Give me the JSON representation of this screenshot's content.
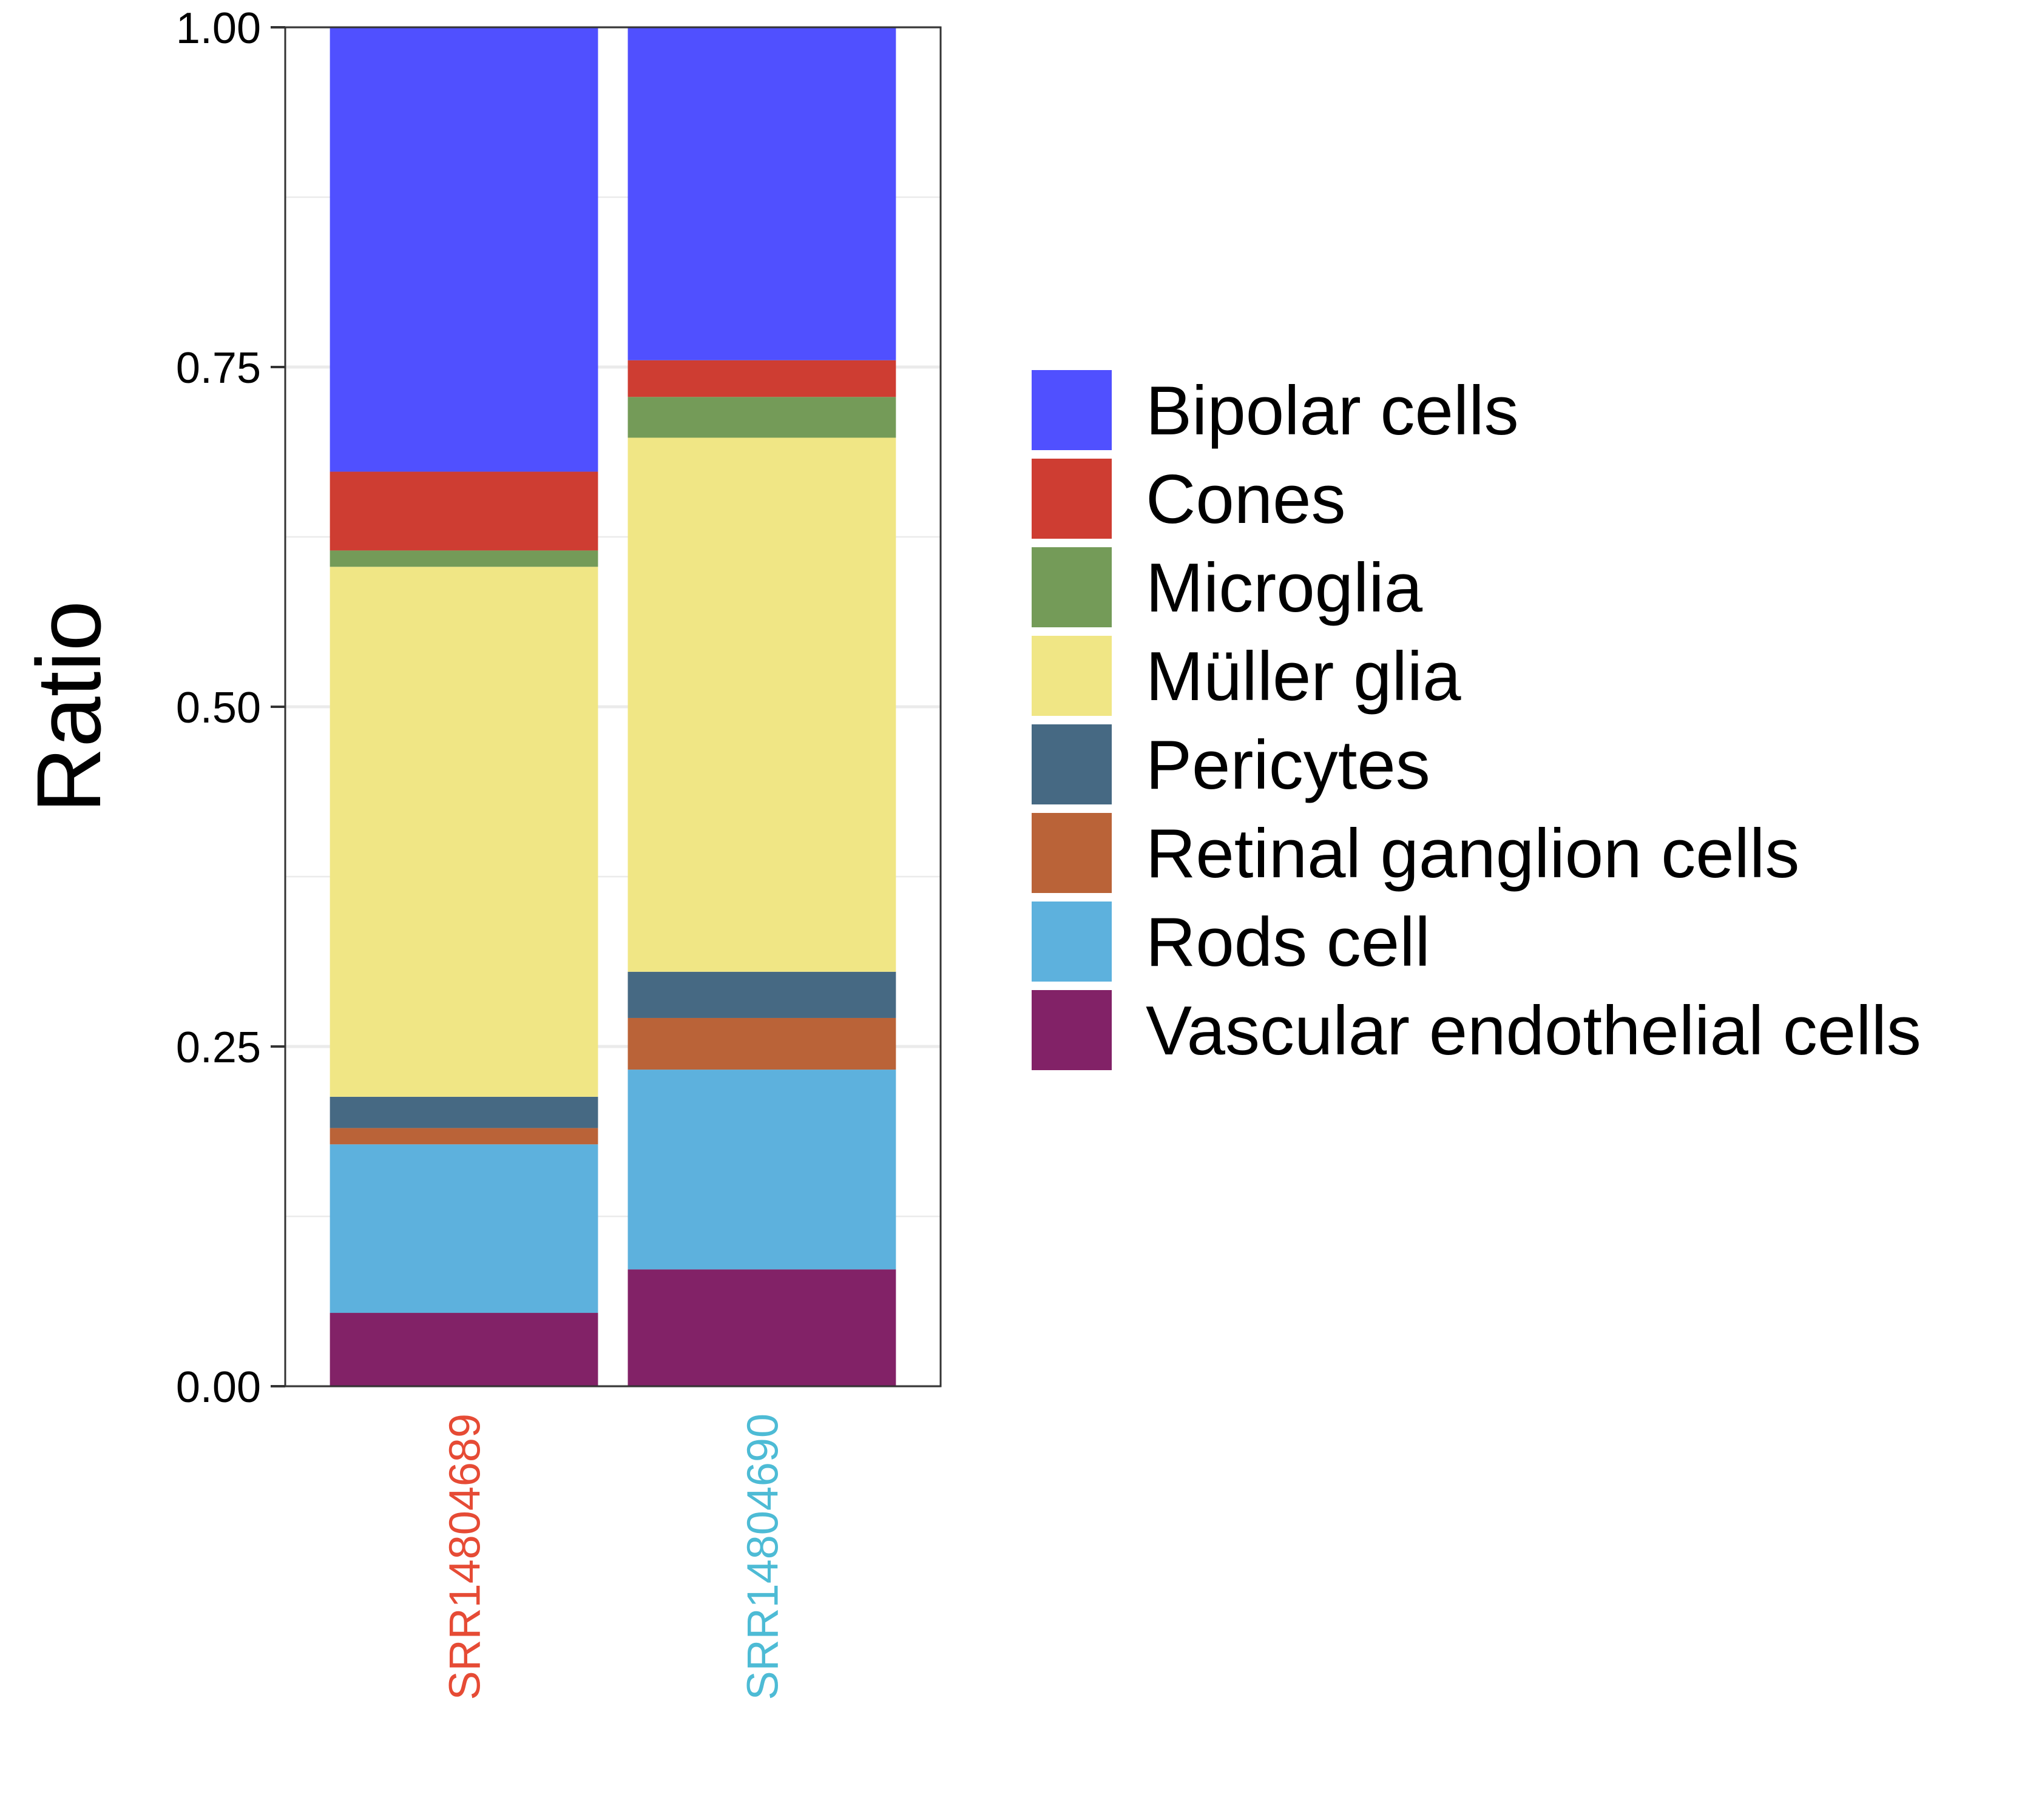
{
  "chart_data": {
    "type": "bar",
    "stacked": true,
    "title": "",
    "xlabel": "",
    "ylabel": "Ratio",
    "ylim": [
      0,
      1
    ],
    "yticks": [
      "0.00",
      "0.25",
      "0.50",
      "0.75",
      "1.00"
    ],
    "grid": true,
    "legend_position": "right",
    "categories": [
      "SRR14804689",
      "SRR14804690"
    ],
    "category_colors": [
      "#E64B35",
      "#4DBBD5"
    ],
    "series": [
      {
        "name": "Vascular endothelial cells",
        "color": "#822267",
        "values": [
          0.054,
          0.086
        ]
      },
      {
        "name": "Rods cell",
        "color": "#5DB1DD",
        "values": [
          0.124,
          0.147
        ]
      },
      {
        "name": "Retinal ganglion cells",
        "color": "#BA6338",
        "values": [
          0.012,
          0.038
        ]
      },
      {
        "name": "Pericytes",
        "color": "#466983",
        "values": [
          0.023,
          0.034
        ]
      },
      {
        "name": "Müller glia",
        "color": "#F0E685",
        "values": [
          0.39,
          0.393
        ]
      },
      {
        "name": "Microglia",
        "color": "#749B58",
        "values": [
          0.012,
          0.03
        ]
      },
      {
        "name": "Cones",
        "color": "#CE3D32",
        "values": [
          0.058,
          0.027
        ]
      },
      {
        "name": "Bipolar cells",
        "color": "#5050FF",
        "values": [
          0.327,
          0.245
        ]
      }
    ],
    "legend_order": [
      "Bipolar cells",
      "Cones",
      "Microglia",
      "Müller glia",
      "Pericytes",
      "Retinal ganglion cells",
      "Rods cell",
      "Vascular endothelial cells"
    ]
  }
}
